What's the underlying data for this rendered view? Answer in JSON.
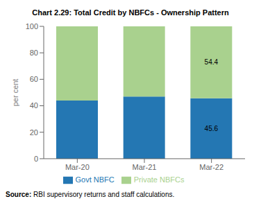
{
  "chart_data": {
    "type": "bar",
    "title": "Chart 2.29: Total Credit by NBFCs - Ownership Pattern",
    "categories": [
      "Mar-20",
      "Mar-21",
      "Mar-22"
    ],
    "series": [
      {
        "name": "Govt NBFC",
        "color": "#2477B3",
        "values": [
          44.0,
          47.0,
          45.6
        ]
      },
      {
        "name": "Private NBFCs",
        "color": "#A9D18E",
        "values": [
          56.0,
          53.0,
          54.4
        ]
      }
    ],
    "stacked": true,
    "ylabel": "per cent",
    "ylim": [
      0,
      100
    ],
    "yticks": [
      0,
      20,
      40,
      60,
      80,
      100
    ],
    "grid": false,
    "legend": "bottom",
    "annotations": [
      {
        "text": "45.6",
        "category": "Mar-22",
        "series": "Govt NBFC"
      },
      {
        "text": "54.4",
        "category": "Mar-22",
        "series": "Private NBFCs"
      }
    ],
    "source": "Source: RBI supervisory returns and staff calculations."
  }
}
